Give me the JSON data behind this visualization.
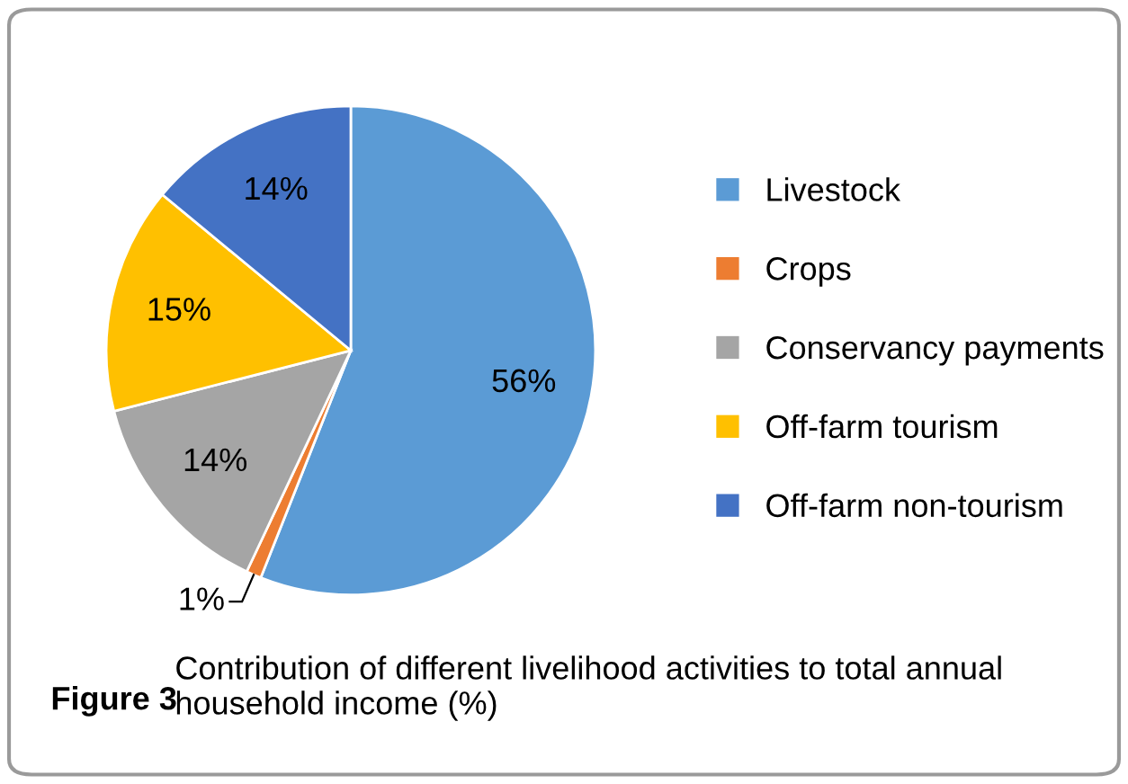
{
  "chart_data": {
    "type": "pie",
    "title": "Figure 3",
    "annotations": [
      "Contribution of different livelihood activities to total annual household income (%)"
    ],
    "categories": [
      "Livestock",
      "Crops",
      "Conservancy payments",
      "Off-farm tourism",
      "Off-farm non-tourism"
    ],
    "values": [
      56,
      1,
      14,
      15,
      14
    ],
    "colors": [
      "#5b9bd5",
      "#ed7d31",
      "#a5a5a5",
      "#ffc000",
      "#4472c4"
    ],
    "value_labels": [
      "56%",
      "1%",
      "14%",
      "15%",
      "14%"
    ],
    "legend": "right"
  }
}
